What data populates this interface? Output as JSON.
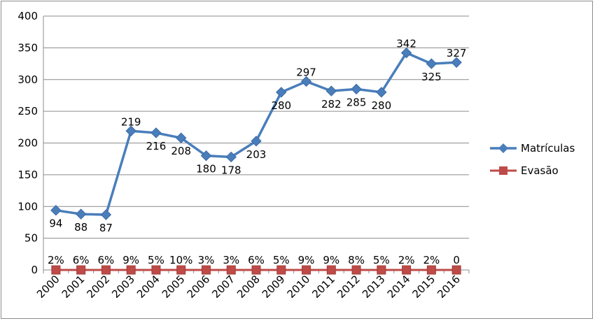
{
  "chart_data": {
    "type": "line",
    "categories": [
      "2000",
      "2001",
      "2002",
      "2003",
      "2004",
      "2005",
      "2006",
      "2007",
      "2008",
      "2009",
      "2010",
      "2011",
      "2012",
      "2013",
      "2014",
      "2015",
      "2016"
    ],
    "ylim": [
      0,
      400
    ],
    "yticks": [
      0,
      50,
      100,
      150,
      200,
      250,
      300,
      350,
      400
    ],
    "grid": true,
    "legend_position": "right",
    "series": [
      {
        "name": "Matrículas",
        "values": [
          94,
          88,
          87,
          219,
          216,
          208,
          180,
          178,
          203,
          280,
          297,
          282,
          285,
          280,
          342,
          325,
          327
        ],
        "labels": [
          "94",
          "88",
          "87",
          "219",
          "216",
          "208",
          "180",
          "178",
          "203",
          "280",
          "297",
          "282",
          "285",
          "280",
          "342",
          "325",
          "327"
        ],
        "color": "#4a7ebb",
        "marker": "diamond"
      },
      {
        "name": "Evasão",
        "values": [
          0,
          0,
          0,
          0,
          0,
          0,
          0,
          0,
          0,
          0,
          0,
          0,
          0,
          0,
          0,
          0,
          0
        ],
        "labels": [
          "2%",
          "6%",
          "6%",
          "9%",
          "5%",
          "10%",
          "3%",
          "3%",
          "6%",
          "5%",
          "9%",
          "9%",
          "8%",
          "5%",
          "2%",
          "2%",
          "0"
        ],
        "color": "#be4b48",
        "marker": "square"
      }
    ]
  }
}
